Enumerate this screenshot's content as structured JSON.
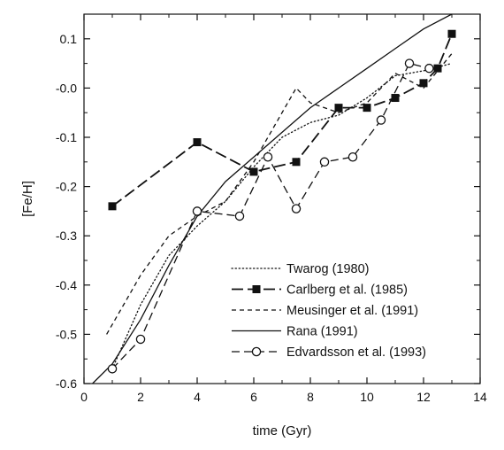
{
  "chart_data": {
    "type": "line",
    "title": "",
    "xlabel": "time (Gyr)",
    "ylabel": "[Fe/H]",
    "xlim": [
      0,
      14
    ],
    "ylim": [
      -0.6,
      0.15
    ],
    "x_ticks": [
      0,
      2,
      4,
      6,
      8,
      10,
      12,
      14
    ],
    "x_tick_labels": [
      "0",
      "2",
      "4",
      "6",
      "8",
      "10",
      "12",
      "14"
    ],
    "y_ticks": [
      0.1,
      0.0,
      -0.1,
      -0.2,
      -0.3,
      -0.4,
      -0.5,
      -0.6
    ],
    "y_tick_labels": [
      "0.1",
      "-0.0",
      "-0.1",
      "-0.2",
      "-0.3",
      "-0.4",
      "-0.5",
      "-0.6"
    ],
    "grid": false,
    "legend_position": "bottom-right",
    "colors": {
      "line": "#111111",
      "background": "#ffffff"
    },
    "series": [
      {
        "name": "Twarog (1980)",
        "style": "dotted",
        "marker": "none",
        "x": [
          1.0,
          2.0,
          3.0,
          4.0,
          5.0,
          6.0,
          7.0,
          8.0,
          9.0,
          10.0,
          11.0,
          12.0,
          13.0
        ],
        "y": [
          -0.57,
          -0.44,
          -0.34,
          -0.28,
          -0.23,
          -0.16,
          -0.1,
          -0.07,
          -0.055,
          -0.02,
          0.025,
          0.035,
          0.05
        ]
      },
      {
        "name": "Carlberg et al. (1985)",
        "style": "long-dash",
        "marker": "filled-square",
        "x": [
          1.0,
          4.0,
          6.0,
          7.5,
          9.0,
          10.0,
          11.0,
          12.0,
          12.5,
          13.0
        ],
        "y": [
          -0.24,
          -0.11,
          -0.17,
          -0.15,
          -0.04,
          -0.04,
          -0.02,
          0.01,
          0.04,
          0.11
        ]
      },
      {
        "name": "Meusinger et al. (1991)",
        "style": "dashed",
        "marker": "none",
        "x": [
          0.8,
          2.0,
          3.0,
          4.0,
          5.0,
          6.0,
          7.0,
          7.5,
          8.0,
          9.0,
          10.0,
          11.0,
          12.0,
          13.0
        ],
        "y": [
          -0.5,
          -0.38,
          -0.3,
          -0.26,
          -0.23,
          -0.15,
          -0.05,
          0.0,
          -0.03,
          -0.05,
          -0.03,
          0.03,
          0.0,
          0.07
        ]
      },
      {
        "name": "Rana (1991)",
        "style": "solid",
        "marker": "none",
        "x": [
          0.3,
          1.0,
          2.0,
          3.0,
          4.0,
          5.0,
          6.0,
          7.0,
          8.0,
          9.0,
          10.0,
          11.0,
          12.0,
          13.0
        ],
        "y": [
          -0.6,
          -0.56,
          -0.47,
          -0.36,
          -0.26,
          -0.19,
          -0.14,
          -0.09,
          -0.04,
          0.0,
          0.04,
          0.08,
          0.12,
          0.15
        ]
      },
      {
        "name": "Edvardsson et al. (1993)",
        "style": "dash",
        "marker": "open-circle",
        "x": [
          1.0,
          2.0,
          4.0,
          5.5,
          6.5,
          7.5,
          8.5,
          9.5,
          10.5,
          11.5,
          12.2
        ],
        "y": [
          -0.57,
          -0.51,
          -0.25,
          -0.26,
          -0.14,
          -0.245,
          -0.15,
          -0.14,
          -0.065,
          0.05,
          0.04
        ]
      }
    ]
  }
}
